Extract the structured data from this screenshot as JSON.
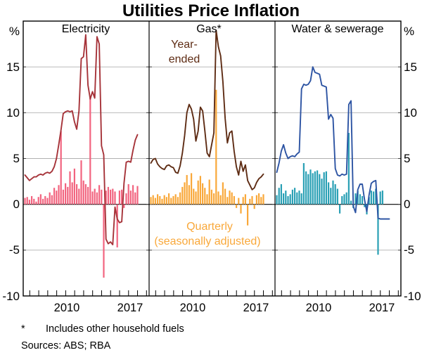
{
  "title": "Utilities Price Inflation",
  "axis": {
    "unit": "%",
    "ymin": -10,
    "ymax": 20,
    "grid_step": 5,
    "ylabels": [
      "%",
      "15",
      "10",
      "5",
      "0",
      "-5",
      "-10"
    ]
  },
  "annotations": {
    "year_ended": [
      "Year-",
      "ended"
    ],
    "quarterly": [
      "Quarterly",
      "(seasonally adjusted)"
    ]
  },
  "footnote": {
    "marker": "*",
    "text": "Includes other household fuels"
  },
  "sources": "Sources: ABS; RBA",
  "chart_data": [
    {
      "type": "bar+line",
      "title": "Electricity",
      "x_tick_labels": [
        "2010",
        "2017"
      ],
      "line_series_name": "Year-ended",
      "bar_series_name": "Quarterly (seasonally adjusted)",
      "line_color": "#a63339",
      "bar_color": "#f2647f",
      "ylim": [
        -10,
        20
      ],
      "line": [
        3.2,
        2.9,
        2.6,
        2.8,
        3.0,
        3.0,
        3.2,
        3.3,
        3.2,
        3.4,
        3.5,
        3.4,
        3.6,
        4.1,
        5.0,
        6.5,
        8.1,
        9.9,
        10.1,
        10.2,
        10.1,
        10.2,
        9.0,
        8.2,
        10.2,
        15.9,
        16.1,
        18.5,
        13.0,
        11.5,
        12.3,
        11.6,
        18.3,
        17.5,
        6.4,
        5.4,
        -3.8,
        -4.3,
        -4.1,
        -4.4,
        -0.3,
        -1.6,
        -2.0,
        -1.9,
        2.3,
        4.6,
        4.7,
        4.6,
        5.9,
        7.0,
        7.6
      ],
      "bars": [
        0.7,
        0.8,
        0.5,
        0.9,
        0.6,
        0.3,
        0.8,
        1.1,
        0.6,
        0.9,
        0.7,
        1.3,
        1.0,
        1.8,
        1.5,
        2.1,
        8.0,
        1.6,
        2.3,
        1.9,
        3.6,
        2.4,
        3.9,
        2.2,
        1.7,
        4.8,
        2.6,
        2.2,
        1.9,
        11.7,
        1.4,
        1.7,
        1.3,
        2.1,
        1.6,
        -8.0,
        1.5,
        1.9,
        1.6,
        1.7,
        1.4,
        -4.7,
        1.5,
        1.6,
        -0.4,
        1.2,
        2.2,
        1.5,
        2.1,
        1.3,
        2.0
      ]
    },
    {
      "type": "bar+line",
      "title": "Gas*",
      "x_tick_labels": [
        "2010",
        "2017"
      ],
      "line_series_name": "Year-ended",
      "bar_series_name": "Quarterly (seasonally adjusted)",
      "line_color": "#5e2c14",
      "bar_color": "#f9a83a",
      "ylim": [
        -10,
        20
      ],
      "line": [
        4.5,
        4.9,
        5.0,
        4.4,
        4.1,
        3.9,
        3.8,
        4.2,
        4.3,
        4.1,
        4.0,
        3.5,
        3.4,
        4.2,
        5.6,
        7.5,
        10.0,
        10.9,
        10.4,
        9.3,
        6.9,
        8.0,
        10.6,
        10.2,
        8.0,
        5.6,
        5.2,
        6.5,
        7.8,
        19.0,
        17.2,
        16.2,
        13.4,
        9.4,
        6.7,
        7.8,
        8.0,
        5.8,
        4.1,
        3.2,
        4.7,
        3.6,
        4.3,
        2.6,
        2.1,
        1.6,
        1.8,
        2.4,
        2.8,
        3.0,
        3.3
      ],
      "bars": [
        0.8,
        1.0,
        0.7,
        1.1,
        0.9,
        0.6,
        1.0,
        0.8,
        1.2,
        0.7,
        0.9,
        1.1,
        0.8,
        1.3,
        1.9,
        2.4,
        3.2,
        2.1,
        3.4,
        1.7,
        1.4,
        2.6,
        3.1,
        2.3,
        1.8,
        1.1,
        2.7,
        1.6,
        1.2,
        12.5,
        1.4,
        1.0,
        2.4,
        1.7,
        0.8,
        1.5,
        1.3,
        0.9,
        -0.4,
        0.7,
        -1.0,
        0.8,
        1.1,
        -2.3,
        0.6,
        0.9,
        -0.5,
        1.0,
        1.2,
        0.8,
        1.1
      ]
    },
    {
      "type": "bar+line",
      "title": "Water & sewerage",
      "x_tick_labels": [
        "2010",
        "2017"
      ],
      "line_series_name": "Year-ended",
      "bar_series_name": "Quarterly (seasonally adjusted)",
      "line_color": "#2d54a3",
      "bar_color": "#2aa0b5",
      "ylim": [
        -10,
        20
      ],
      "line": [
        3.5,
        4.5,
        5.8,
        6.5,
        5.6,
        5.0,
        5.2,
        5.3,
        5.2,
        5.5,
        5.7,
        12.6,
        13.1,
        13.0,
        13.1,
        13.5,
        15.0,
        14.4,
        14.3,
        14.2,
        13.0,
        12.9,
        12.8,
        9.3,
        9.8,
        9.4,
        3.9,
        3.2,
        3.1,
        3.3,
        3.2,
        3.3,
        10.9,
        11.3,
        -0.2,
        -0.9,
        1.6,
        2.2,
        2.2,
        0.5,
        -0.8,
        1.0,
        2.3,
        2.5,
        2.6,
        -1.5,
        -1.6,
        -1.6,
        -1.6,
        -1.6,
        -1.6
      ],
      "bars": [
        1.0,
        1.8,
        2.2,
        1.2,
        1.5,
        0.9,
        1.1,
        1.6,
        1.8,
        1.3,
        1.5,
        1.2,
        4.5,
        3.6,
        3.3,
        3.8,
        3.4,
        3.6,
        3.7,
        3.3,
        2.8,
        3.5,
        3.6,
        2.4,
        1.8,
        2.6,
        2.2,
        1.7,
        -1.0,
        0.9,
        1.1,
        1.3,
        7.8,
        0.4,
        -0.4,
        1.2,
        1.5,
        1.1,
        0.9,
        -0.3,
        -1.1,
        0.8,
        1.5,
        1.4,
        1.7,
        -5.5,
        1.4,
        1.5,
        0,
        0,
        0
      ]
    }
  ]
}
